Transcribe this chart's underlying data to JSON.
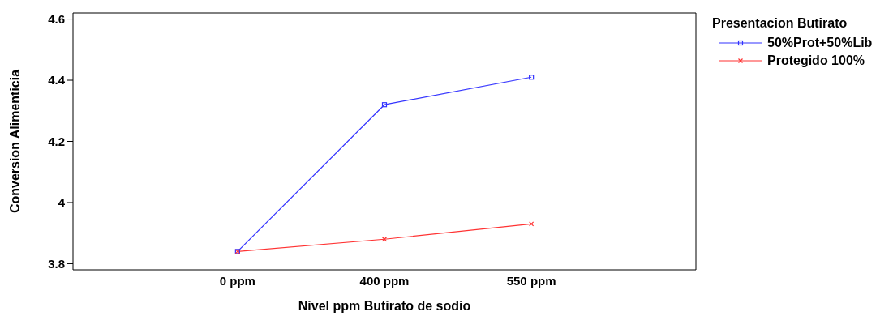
{
  "chart_data": {
    "type": "line",
    "xlabel": "Nivel ppm Butirato de sodio",
    "ylabel": "Conversion Alimenticia",
    "legend_title": "Presentacion Butirato",
    "categories": [
      "0 ppm",
      "400 ppm",
      "550 ppm"
    ],
    "series": [
      {
        "name": "50%Prot+50%Lib",
        "color": "#3333ff",
        "marker": "square",
        "values": [
          3.84,
          4.32,
          4.41
        ]
      },
      {
        "name": "Protegido 100%",
        "color": "#ff3333",
        "marker": "cross",
        "values": [
          3.84,
          3.88,
          3.93
        ]
      }
    ],
    "ylim": [
      3.78,
      4.62
    ],
    "yticks": [
      3.8,
      4,
      4.2,
      4.4,
      4.6
    ],
    "legend": "top right",
    "line_style": "solid"
  }
}
